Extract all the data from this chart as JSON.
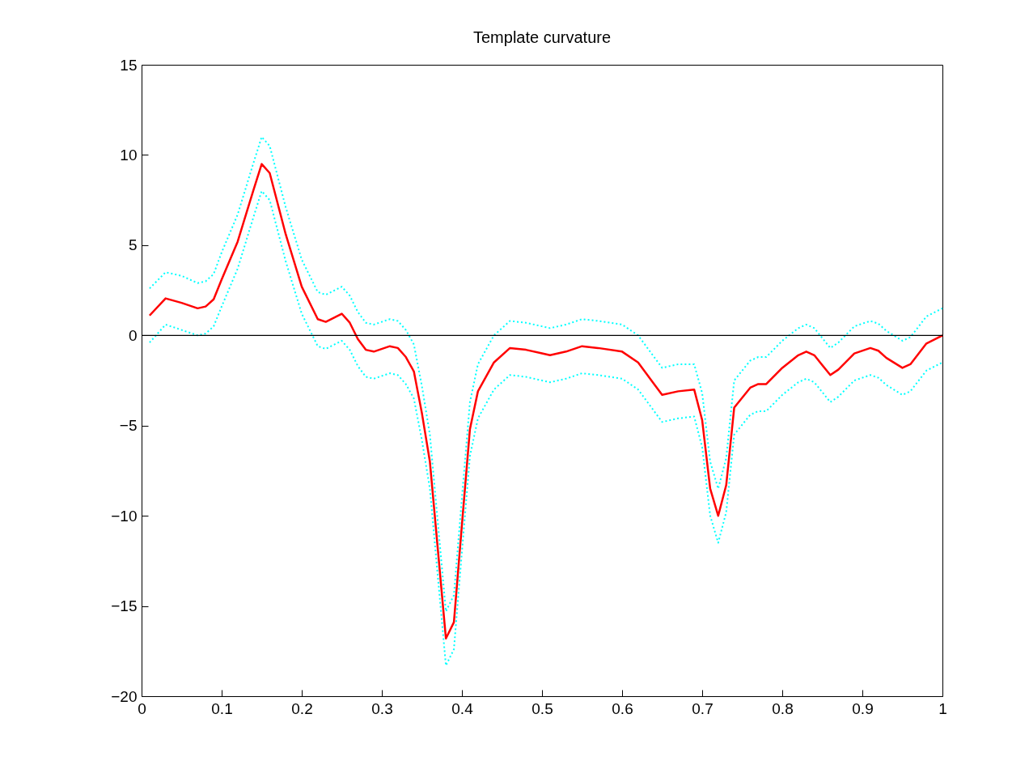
{
  "chart_data": {
    "type": "line",
    "title": "Template curvature",
    "x": [
      0.01,
      0.03,
      0.05,
      0.07,
      0.08,
      0.09,
      0.1,
      0.12,
      0.14,
      0.15,
      0.16,
      0.18,
      0.2,
      0.22,
      0.23,
      0.25,
      0.26,
      0.27,
      0.28,
      0.29,
      0.31,
      0.32,
      0.33,
      0.34,
      0.35,
      0.36,
      0.37,
      0.38,
      0.39,
      0.4,
      0.41,
      0.42,
      0.44,
      0.46,
      0.48,
      0.5,
      0.51,
      0.53,
      0.55,
      0.57,
      0.6,
      0.62,
      0.64,
      0.65,
      0.67,
      0.69,
      0.7,
      0.71,
      0.72,
      0.73,
      0.74,
      0.76,
      0.77,
      0.78,
      0.8,
      0.82,
      0.83,
      0.84,
      0.86,
      0.87,
      0.89,
      0.91,
      0.92,
      0.93,
      0.95,
      0.96,
      0.98,
      1.0
    ],
    "series": [
      {
        "color": "#ff0000",
        "line_style": "solid",
        "values": [
          1.1,
          2.05,
          1.8,
          1.5,
          1.6,
          2.0,
          3.1,
          5.2,
          8.1,
          9.5,
          9.0,
          5.6,
          2.7,
          0.9,
          0.75,
          1.2,
          0.7,
          -0.2,
          -0.8,
          -0.9,
          -0.6,
          -0.7,
          -1.2,
          -2.0,
          -4.3,
          -7.0,
          -11.9,
          -16.8,
          -15.9,
          -10.5,
          -5.2,
          -3.1,
          -1.5,
          -0.7,
          -0.8,
          -1.0,
          -1.1,
          -0.9,
          -0.6,
          -0.7,
          -0.9,
          -1.5,
          -2.7,
          -3.3,
          -3.1,
          -3.0,
          -4.7,
          -8.5,
          -10.0,
          -8.3,
          -4.0,
          -2.9,
          -2.7,
          -2.7,
          -1.8,
          -1.1,
          -0.9,
          -1.1,
          -2.2,
          -1.9,
          -1.0,
          -0.7,
          -0.85,
          -1.25,
          -1.8,
          -1.6,
          -0.45,
          0
        ]
      },
      {
        "color": "#00ffff",
        "line_style": "dotted",
        "values": [
          2.6,
          3.5,
          3.3,
          2.9,
          3.0,
          3.4,
          4.6,
          6.7,
          9.6,
          11.0,
          10.5,
          7.1,
          4.2,
          2.4,
          2.25,
          2.7,
          2.2,
          1.3,
          0.7,
          0.6,
          0.9,
          0.8,
          0.3,
          -0.5,
          -2.8,
          -5.5,
          -10.4,
          -15.3,
          -14.4,
          -9.0,
          -3.7,
          -1.6,
          0.0,
          0.8,
          0.7,
          0.5,
          0.4,
          0.6,
          0.9,
          0.8,
          0.6,
          0.0,
          -1.2,
          -1.8,
          -1.6,
          -1.6,
          -3.2,
          -7.0,
          -8.5,
          -6.8,
          -2.5,
          -1.4,
          -1.2,
          -1.2,
          -0.3,
          0.4,
          0.6,
          0.4,
          -0.7,
          -0.4,
          0.5,
          0.8,
          0.65,
          0.25,
          -0.3,
          -0.1,
          1.05,
          1.5
        ]
      },
      {
        "color": "#00ffff",
        "line_style": "dotted",
        "values": [
          -0.4,
          0.6,
          0.3,
          0.0,
          0.1,
          0.5,
          1.6,
          3.7,
          6.6,
          8.0,
          7.5,
          4.1,
          1.2,
          -0.6,
          -0.75,
          -0.3,
          -0.8,
          -1.7,
          -2.3,
          -2.4,
          -2.1,
          -2.2,
          -2.7,
          -3.5,
          -5.8,
          -8.5,
          -13.4,
          -18.3,
          -17.4,
          -12.0,
          -6.7,
          -4.6,
          -3.0,
          -2.2,
          -2.3,
          -2.5,
          -2.6,
          -2.4,
          -2.1,
          -2.2,
          -2.4,
          -3.0,
          -4.2,
          -4.8,
          -4.6,
          -4.5,
          -6.2,
          -10.0,
          -11.5,
          -9.8,
          -5.5,
          -4.4,
          -4.2,
          -4.2,
          -3.3,
          -2.6,
          -2.4,
          -2.6,
          -3.7,
          -3.4,
          -2.5,
          -2.2,
          -2.35,
          -2.75,
          -3.3,
          -3.1,
          -1.95,
          -1.5
        ]
      }
    ],
    "xlim": [
      0,
      1
    ],
    "xticks": [
      0,
      0.1,
      0.2,
      0.3,
      0.4,
      0.5,
      0.6,
      0.7,
      0.8,
      0.9,
      1
    ],
    "ylim": [
      -20,
      15
    ],
    "yticks": [
      -20,
      -15,
      -10,
      -5,
      0,
      5,
      10,
      15
    ],
    "ref_lines": [
      {
        "axis": "y",
        "value": 0,
        "color": "#000000"
      }
    ]
  }
}
